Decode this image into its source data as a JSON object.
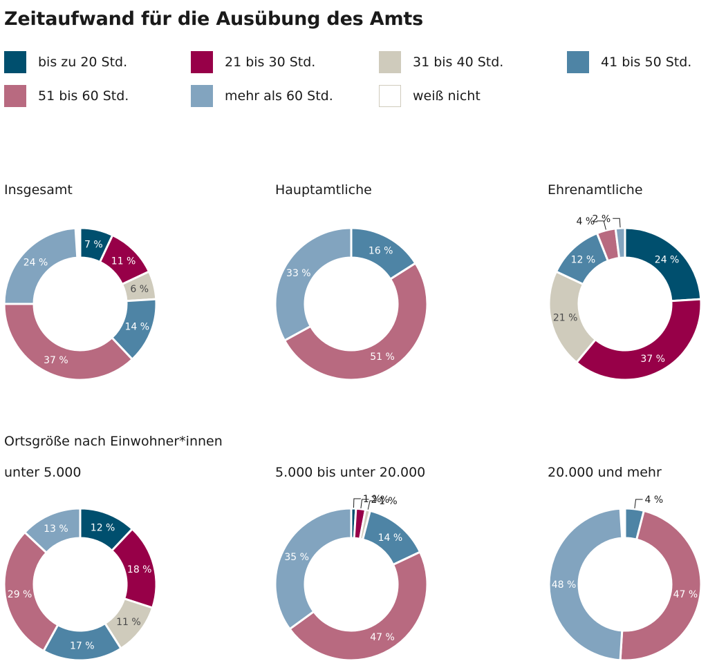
{
  "title": "Zeitaufwand für die Ausübung des Amts",
  "legend": [
    {
      "label": "bis zu 20 Std.",
      "color": "#004f6e"
    },
    {
      "label": "21 bis 30 Std.",
      "color": "#970048"
    },
    {
      "label": "31 bis 40 Std.",
      "color": "#cfcbbc"
    },
    {
      "label": "41 bis 50 Std.",
      "color": "#4e84a5"
    },
    {
      "label": "51 bis 60 Std.",
      "color": "#b86a80"
    },
    {
      "label": "mehr als 60 Std.",
      "color": "#82a4bf"
    },
    {
      "label": "weiß nicht",
      "color": "#ffffff"
    }
  ],
  "section_title": "Ortsgröße nach Einwohner*innen",
  "chart_data": [
    {
      "type": "pie",
      "title": "Insgesamt",
      "slices": [
        {
          "category": "bis zu 20 Std.",
          "value": 7,
          "label": "7 %"
        },
        {
          "category": "21 bis 30 Std.",
          "value": 11,
          "label": "11 %"
        },
        {
          "category": "31 bis 40 Std.",
          "value": 6,
          "label": "6 %"
        },
        {
          "category": "41 bis 50 Std.",
          "value": 14,
          "label": "14 %"
        },
        {
          "category": "51 bis 60 Std.",
          "value": 37,
          "label": "37 %"
        },
        {
          "category": "mehr als 60 Std.",
          "value": 24,
          "label": "24 %"
        }
      ]
    },
    {
      "type": "pie",
      "title": "Hauptamtliche",
      "slices": [
        {
          "category": "41 bis 50 Std.",
          "value": 16,
          "label": "16 %"
        },
        {
          "category": "51 bis 60 Std.",
          "value": 51,
          "label": "51 %"
        },
        {
          "category": "mehr als 60 Std.",
          "value": 33,
          "label": "33 %"
        }
      ]
    },
    {
      "type": "pie",
      "title": "Ehrenamtliche",
      "slices": [
        {
          "category": "bis zu 20 Std.",
          "value": 24,
          "label": "24 %"
        },
        {
          "category": "21 bis 30 Std.",
          "value": 37,
          "label": "37 %"
        },
        {
          "category": "31 bis 40 Std.",
          "value": 21,
          "label": "21 %"
        },
        {
          "category": "41 bis 50 Std.",
          "value": 12,
          "label": "12 %"
        },
        {
          "category": "51 bis 60 Std.",
          "value": 4,
          "label": "4 %"
        },
        {
          "category": "mehr als 60 Std.",
          "value": 2,
          "label": "2 %"
        }
      ]
    },
    {
      "type": "pie",
      "title": "unter 5.000",
      "slices": [
        {
          "category": "bis zu 20 Std.",
          "value": 12,
          "label": "12 %"
        },
        {
          "category": "21 bis 30 Std.",
          "value": 18,
          "label": "18 %"
        },
        {
          "category": "31 bis 40 Std.",
          "value": 11,
          "label": "11 %"
        },
        {
          "category": "41 bis 50 Std.",
          "value": 17,
          "label": "17 %"
        },
        {
          "category": "51 bis 60 Std.",
          "value": 29,
          "label": "29 %"
        },
        {
          "category": "mehr als 60 Std.",
          "value": 13,
          "label": "13 %"
        }
      ]
    },
    {
      "type": "pie",
      "title": "5.000 bis unter 20.000",
      "slices": [
        {
          "category": "bis zu 20 Std.",
          "value": 1,
          "label": "1 %"
        },
        {
          "category": "21 bis 30 Std.",
          "value": 2,
          "label": "2 %"
        },
        {
          "category": "31 bis 40 Std.",
          "value": 1,
          "label": "1 %"
        },
        {
          "category": "41 bis 50 Std.",
          "value": 14,
          "label": "14 %"
        },
        {
          "category": "51 bis 60 Std.",
          "value": 47,
          "label": "47 %"
        },
        {
          "category": "mehr als 60 Std.",
          "value": 35,
          "label": "35 %"
        }
      ]
    },
    {
      "type": "pie",
      "title": "20.000 und mehr",
      "slices": [
        {
          "category": "41 bis 50 Std.",
          "value": 4,
          "label": "4 %"
        },
        {
          "category": "51 bis 60 Std.",
          "value": 47,
          "label": "47 %"
        },
        {
          "category": "mehr als 60 Std.",
          "value": 48,
          "label": "48 %"
        }
      ]
    }
  ]
}
